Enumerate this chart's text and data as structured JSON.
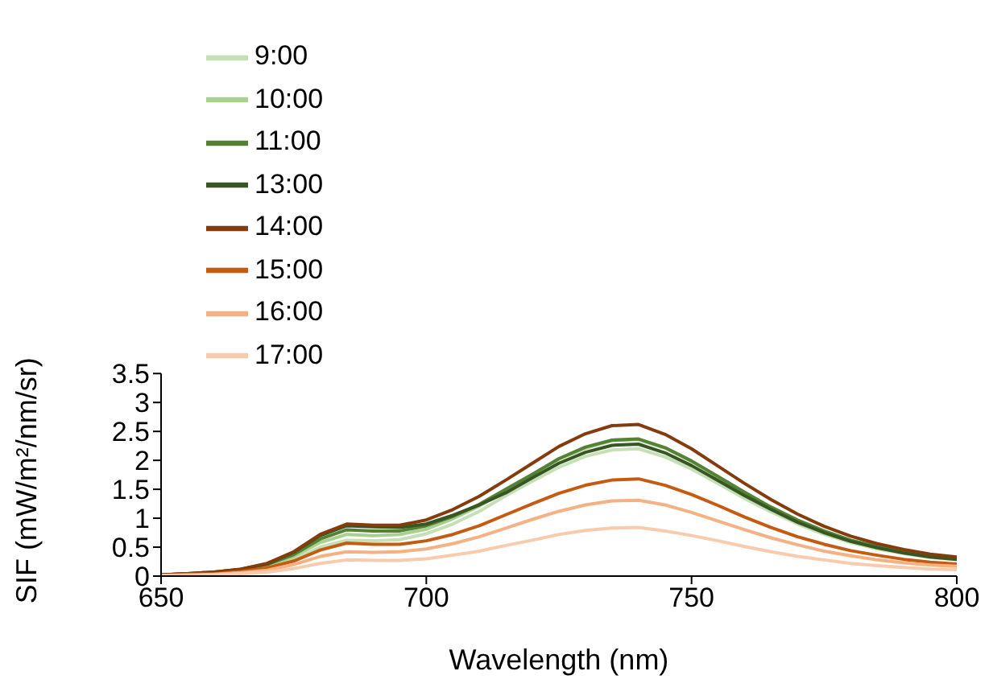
{
  "chart_data": {
    "type": "line",
    "xlabel": "Wavelength (nm)",
    "ylabel": "SIF (mW/m²/nm/sr)",
    "x": [
      650,
      655,
      660,
      665,
      670,
      675,
      680,
      685,
      690,
      695,
      700,
      705,
      710,
      715,
      720,
      725,
      730,
      735,
      740,
      745,
      750,
      755,
      760,
      765,
      770,
      775,
      780,
      785,
      790,
      795,
      800
    ],
    "xlim": [
      650,
      800
    ],
    "xticks": [
      650,
      700,
      750,
      800
    ],
    "ylim": [
      0,
      3.5
    ],
    "yticks": [
      0,
      0.5,
      1,
      1.5,
      2,
      2.5,
      3,
      3.5
    ],
    "grid": false,
    "legend": "top left",
    "marker": "none",
    "line_style": "solid",
    "series": [
      {
        "name": "9:00",
        "color": "#c5e0b4",
        "values": [
          0.01,
          0.03,
          0.05,
          0.08,
          0.15,
          0.29,
          0.5,
          0.62,
          0.61,
          0.63,
          0.73,
          0.9,
          1.12,
          1.39,
          1.64,
          1.88,
          2.07,
          2.18,
          2.2,
          2.06,
          1.85,
          1.6,
          1.34,
          1.11,
          0.9,
          0.72,
          0.58,
          0.47,
          0.39,
          0.32,
          0.28
        ]
      },
      {
        "name": "10:00",
        "color": "#a9d18e",
        "values": [
          0.02,
          0.03,
          0.06,
          0.1,
          0.18,
          0.34,
          0.58,
          0.72,
          0.7,
          0.72,
          0.81,
          0.99,
          1.21,
          1.49,
          1.76,
          2.02,
          2.21,
          2.34,
          2.36,
          2.21,
          1.98,
          1.71,
          1.44,
          1.19,
          0.96,
          0.77,
          0.62,
          0.5,
          0.41,
          0.34,
          0.3
        ]
      },
      {
        "name": "11:00",
        "color": "#548235",
        "values": [
          0.02,
          0.04,
          0.06,
          0.11,
          0.2,
          0.37,
          0.64,
          0.8,
          0.78,
          0.78,
          0.87,
          1.03,
          1.24,
          1.5,
          1.76,
          2.03,
          2.23,
          2.35,
          2.37,
          2.22,
          1.99,
          1.72,
          1.45,
          1.19,
          0.97,
          0.78,
          0.62,
          0.51,
          0.42,
          0.34,
          0.3
        ]
      },
      {
        "name": "13:00",
        "color": "#375623",
        "values": [
          0.02,
          0.04,
          0.07,
          0.12,
          0.21,
          0.41,
          0.7,
          0.87,
          0.85,
          0.84,
          0.9,
          1.05,
          1.23,
          1.44,
          1.7,
          1.95,
          2.14,
          2.26,
          2.28,
          2.13,
          1.91,
          1.65,
          1.39,
          1.15,
          0.93,
          0.75,
          0.6,
          0.49,
          0.4,
          0.33,
          0.29
        ]
      },
      {
        "name": "14:00",
        "color": "#843c0c",
        "values": [
          0.02,
          0.04,
          0.07,
          0.12,
          0.22,
          0.42,
          0.72,
          0.9,
          0.88,
          0.88,
          0.97,
          1.15,
          1.38,
          1.66,
          1.95,
          2.24,
          2.46,
          2.6,
          2.62,
          2.45,
          2.2,
          1.9,
          1.6,
          1.32,
          1.07,
          0.86,
          0.69,
          0.56,
          0.46,
          0.38,
          0.33
        ]
      },
      {
        "name": "15:00",
        "color": "#c55a11",
        "values": [
          0.01,
          0.03,
          0.04,
          0.08,
          0.14,
          0.26,
          0.45,
          0.57,
          0.55,
          0.55,
          0.61,
          0.72,
          0.87,
          1.06,
          1.25,
          1.43,
          1.57,
          1.66,
          1.68,
          1.57,
          1.41,
          1.22,
          1.02,
          0.84,
          0.68,
          0.55,
          0.44,
          0.36,
          0.29,
          0.24,
          0.21
        ]
      },
      {
        "name": "16:00",
        "color": "#f4b183",
        "values": [
          0.01,
          0.02,
          0.03,
          0.06,
          0.1,
          0.2,
          0.34,
          0.42,
          0.41,
          0.42,
          0.47,
          0.56,
          0.68,
          0.83,
          0.98,
          1.12,
          1.23,
          1.3,
          1.31,
          1.23,
          1.1,
          0.95,
          0.8,
          0.66,
          0.54,
          0.43,
          0.35,
          0.28,
          0.23,
          0.19,
          0.17
        ]
      },
      {
        "name": "17:00",
        "color": "#f8cbad",
        "values": [
          0.01,
          0.01,
          0.02,
          0.04,
          0.07,
          0.13,
          0.22,
          0.28,
          0.27,
          0.27,
          0.3,
          0.36,
          0.43,
          0.53,
          0.62,
          0.72,
          0.79,
          0.83,
          0.84,
          0.78,
          0.7,
          0.61,
          0.51,
          0.42,
          0.34,
          0.28,
          0.22,
          0.18,
          0.15,
          0.12,
          0.11
        ]
      }
    ]
  }
}
